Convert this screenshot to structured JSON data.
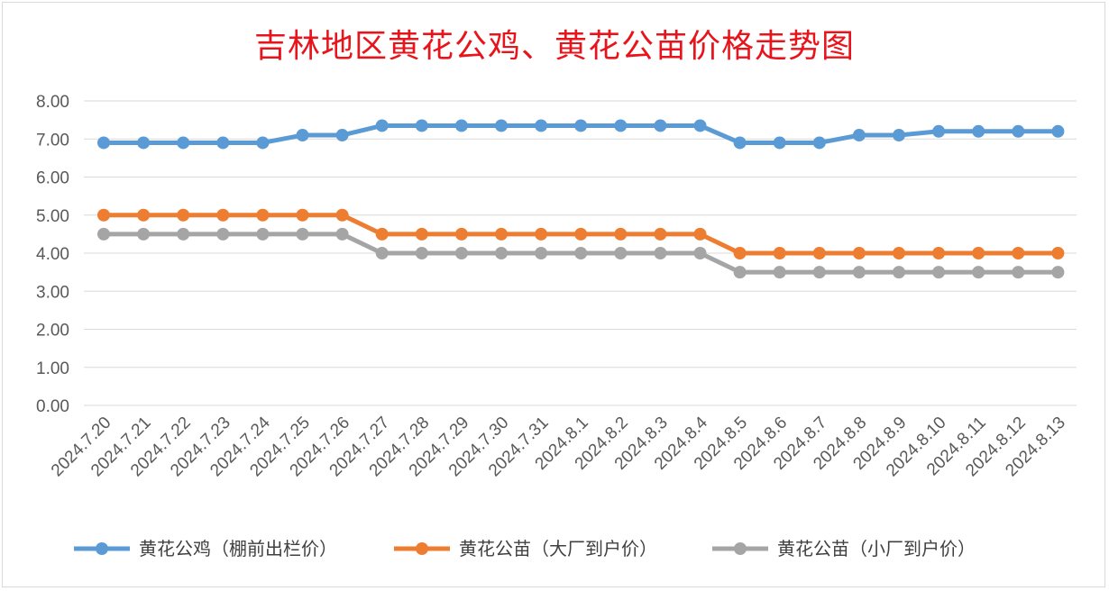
{
  "chart_data": {
    "type": "line",
    "title": "吉林地区黄花公鸡、黄花公苗价格走势图",
    "categories": [
      "2024.7.20",
      "2024.7.21",
      "2024.7.22",
      "2024.7.23",
      "2024.7.24",
      "2024.7.25",
      "2024.7.26",
      "2024.7.27",
      "2024.7.28",
      "2024.7.29",
      "2024.7.30",
      "2024.7.31",
      "2024.8.1",
      "2024.8.2",
      "2024.8.3",
      "2024.8.4",
      "2024.8.5",
      "2024.8.6",
      "2024.8.7",
      "2024.8.8",
      "2024.8.9",
      "2024.8.10",
      "2024.8.11",
      "2024.8.12",
      "2024.8.13"
    ],
    "ylim": [
      0,
      8
    ],
    "yticks": [
      "0.00",
      "1.00",
      "2.00",
      "3.00",
      "4.00",
      "5.00",
      "6.00",
      "7.00",
      "8.00"
    ],
    "grid": true,
    "legend_position": "bottom",
    "series": [
      {
        "name": "黄花公鸡（棚前出栏价）",
        "color": "#5b9bd5",
        "values": [
          6.9,
          6.9,
          6.9,
          6.9,
          6.9,
          7.1,
          7.1,
          7.35,
          7.35,
          7.35,
          7.35,
          7.35,
          7.35,
          7.35,
          7.35,
          7.35,
          6.9,
          6.9,
          6.9,
          7.1,
          7.1,
          7.2,
          7.2,
          7.2,
          7.2
        ]
      },
      {
        "name": "黄花公苗（大厂到户价）",
        "color": "#ed7d31",
        "values": [
          5,
          5,
          5,
          5,
          5,
          5,
          5,
          4.5,
          4.5,
          4.5,
          4.5,
          4.5,
          4.5,
          4.5,
          4.5,
          4.5,
          4,
          4,
          4,
          4,
          4,
          4,
          4,
          4,
          4
        ]
      },
      {
        "name": "黄花公苗（小厂到户价）",
        "color": "#a5a5a5",
        "values": [
          4.5,
          4.5,
          4.5,
          4.5,
          4.5,
          4.5,
          4.5,
          4,
          4,
          4,
          4,
          4,
          4,
          4,
          4,
          4,
          3.5,
          3.5,
          3.5,
          3.5,
          3.5,
          3.5,
          3.5,
          3.5,
          3.5
        ]
      }
    ]
  }
}
